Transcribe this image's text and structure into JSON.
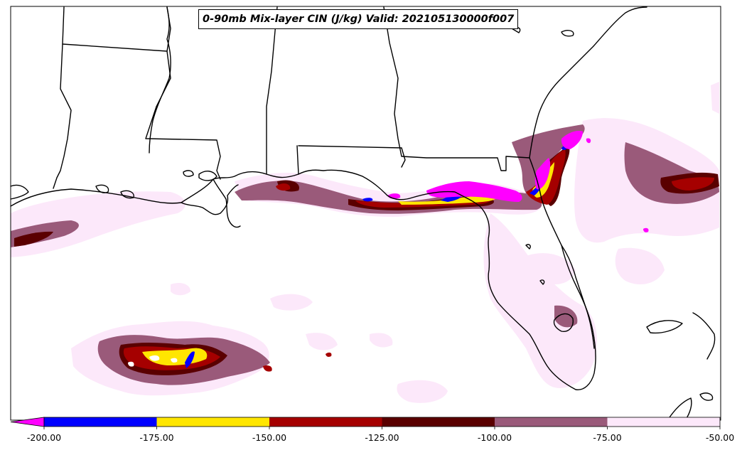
{
  "map": {
    "title": "0-90mb Mix-layer CIN (J/kg) Valid: 202105130000f007",
    "variable": "CIN",
    "units": "J/kg"
  },
  "colorbar": {
    "extend": "min",
    "bins": [
      {
        "from": -200,
        "to": -175,
        "color": "#0000ff"
      },
      {
        "from": -175,
        "to": -150,
        "color": "#ffe600"
      },
      {
        "from": -150,
        "to": -125,
        "color": "#a50000"
      },
      {
        "from": -125,
        "to": -100,
        "color": "#5a0000"
      },
      {
        "from": -100,
        "to": -75,
        "color": "#9a5a7a"
      },
      {
        "from": -75,
        "to": -50,
        "color": "#fce8fa"
      }
    ],
    "under_color": "#ff00ff",
    "tick_labels": [
      "-200.00",
      "-175.00",
      "-150.00",
      "-125.00",
      "-100.00",
      "-75.00",
      "-50.00"
    ]
  },
  "colors": {
    "coastline": "#000000",
    "background": "#ffffff"
  }
}
